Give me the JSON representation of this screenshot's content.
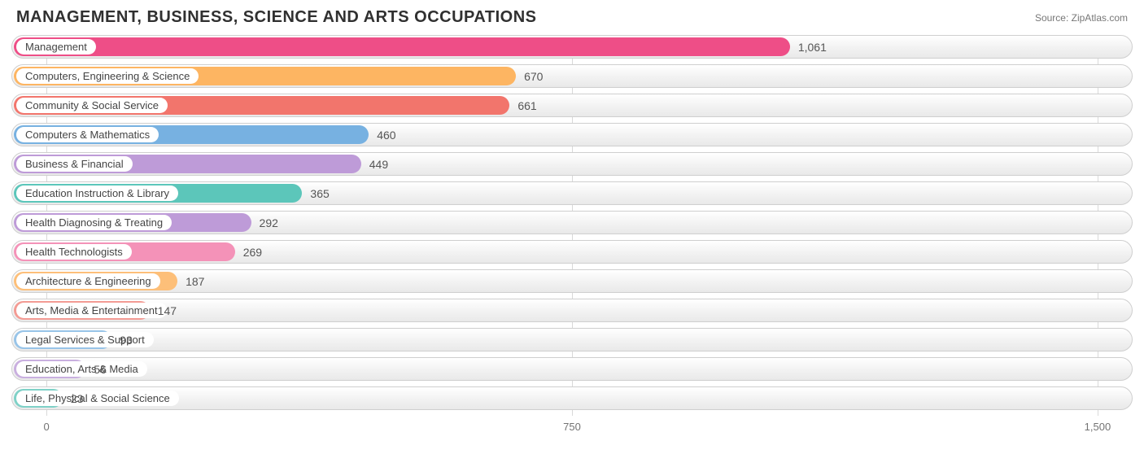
{
  "title": "MANAGEMENT, BUSINESS, SCIENCE AND ARTS OCCUPATIONS",
  "source_label": "Source:",
  "source_name": "ZipAtlas.com",
  "chart": {
    "type": "bar",
    "x_min": -50,
    "x_max": 1550,
    "x_ticks": [
      {
        "value": 0,
        "label": "0"
      },
      {
        "value": 750,
        "label": "750"
      },
      {
        "value": 1500,
        "label": "1,500"
      }
    ],
    "grid_color": "#d9d9d9",
    "track_border_color": "#cfcfcf",
    "bar_origin": 3,
    "pill_background": "#ffffff",
    "bars": [
      {
        "label": "Management",
        "value": 1061,
        "display": "1,061",
        "color": "#ee4e87"
      },
      {
        "label": "Computers, Engineering & Science",
        "value": 670,
        "display": "670",
        "color": "#fdb562"
      },
      {
        "label": "Community & Social Service",
        "value": 661,
        "display": "661",
        "color": "#f2756c"
      },
      {
        "label": "Computers & Mathematics",
        "value": 460,
        "display": "460",
        "color": "#77b1e1"
      },
      {
        "label": "Business & Financial",
        "value": 449,
        "display": "449",
        "color": "#be9bd8"
      },
      {
        "label": "Education Instruction & Library",
        "value": 365,
        "display": "365",
        "color": "#5cc6ba"
      },
      {
        "label": "Health Diagnosing & Treating",
        "value": 292,
        "display": "292",
        "color": "#be9bd8"
      },
      {
        "label": "Health Technologists",
        "value": 269,
        "display": "269",
        "color": "#f492b8"
      },
      {
        "label": "Architecture & Engineering",
        "value": 187,
        "display": "187",
        "color": "#fdbf79"
      },
      {
        "label": "Arts, Media & Entertainment",
        "value": 147,
        "display": "147",
        "color": "#f39b94"
      },
      {
        "label": "Legal Services & Support",
        "value": 93,
        "display": "93",
        "color": "#98c4e8"
      },
      {
        "label": "Education, Arts & Media",
        "value": 56,
        "display": "56",
        "color": "#c9afdf"
      },
      {
        "label": "Life, Physical & Social Science",
        "value": 23,
        "display": "23",
        "color": "#7fd1c7"
      }
    ]
  }
}
